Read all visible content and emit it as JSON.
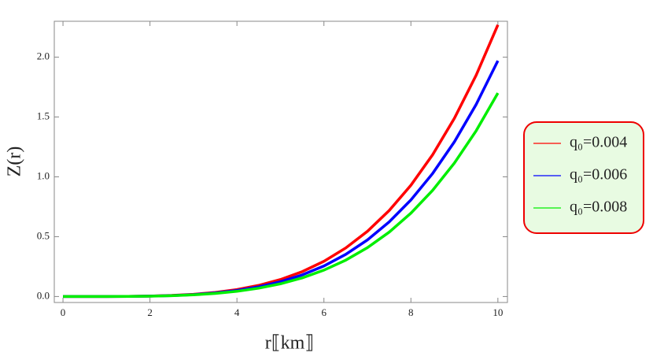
{
  "chart_data": {
    "type": "line",
    "x": [
      0,
      0.5,
      1,
      1.5,
      2,
      2.5,
      3,
      3.5,
      4,
      4.5,
      5,
      5.5,
      6,
      6.5,
      7,
      7.5,
      8,
      8.5,
      9,
      9.5,
      10
    ],
    "series": [
      {
        "name": "q₀=0.004",
        "color": "#ff0000",
        "values": [
          0,
          0,
          0.0002,
          0.0011,
          0.0036,
          0.0089,
          0.0184,
          0.0341,
          0.0581,
          0.0931,
          0.1419,
          0.2077,
          0.2942,
          0.4052,
          0.545,
          0.7182,
          0.9298,
          1.185,
          1.4893,
          1.8489,
          2.27
        ]
      },
      {
        "name": "q₀=0.006",
        "color": "#0000ff",
        "values": [
          0,
          0,
          0.0002,
          0.001,
          0.0032,
          0.0077,
          0.016,
          0.0296,
          0.0504,
          0.0808,
          0.1231,
          0.1803,
          0.2553,
          0.3517,
          0.473,
          0.6233,
          0.8069,
          1.0284,
          1.2925,
          1.6046,
          1.97
        ]
      },
      {
        "name": "q₀=0.008",
        "color": "#00ee00",
        "values": [
          0,
          0,
          0.0002,
          0.0009,
          0.0027,
          0.0066,
          0.0138,
          0.0255,
          0.0435,
          0.0697,
          0.1063,
          0.1556,
          0.2203,
          0.3035,
          0.4082,
          0.5379,
          0.6963,
          0.8874,
          1.1154,
          1.3847,
          1.7
        ]
      }
    ],
    "x_label": "r⟦km⟧",
    "y_label": "Z(r)",
    "xlim": [
      -0.2,
      10.22
    ],
    "ylim": [
      -0.05,
      2.3
    ],
    "xticks": [
      0,
      2,
      4,
      6,
      8,
      10
    ],
    "yticks": [
      {
        "value": 0,
        "label": "0.0"
      },
      {
        "value": 0.5,
        "label": "0.5"
      },
      {
        "value": 1,
        "label": "1.0"
      },
      {
        "value": 1.5,
        "label": "1.5"
      },
      {
        "value": 2,
        "label": "2.0"
      }
    ],
    "legend": "right"
  }
}
